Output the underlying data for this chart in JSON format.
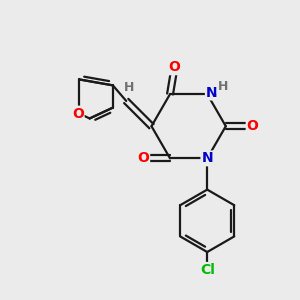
{
  "bg_color": "#ebebeb",
  "bond_color": "#1a1a1a",
  "atom_colors": {
    "O": "#ff0000",
    "N": "#0000cc",
    "Cl": "#00bb00",
    "H": "#707070",
    "C": "#1a1a1a"
  },
  "font_size_atom": 10,
  "font_size_h": 9
}
